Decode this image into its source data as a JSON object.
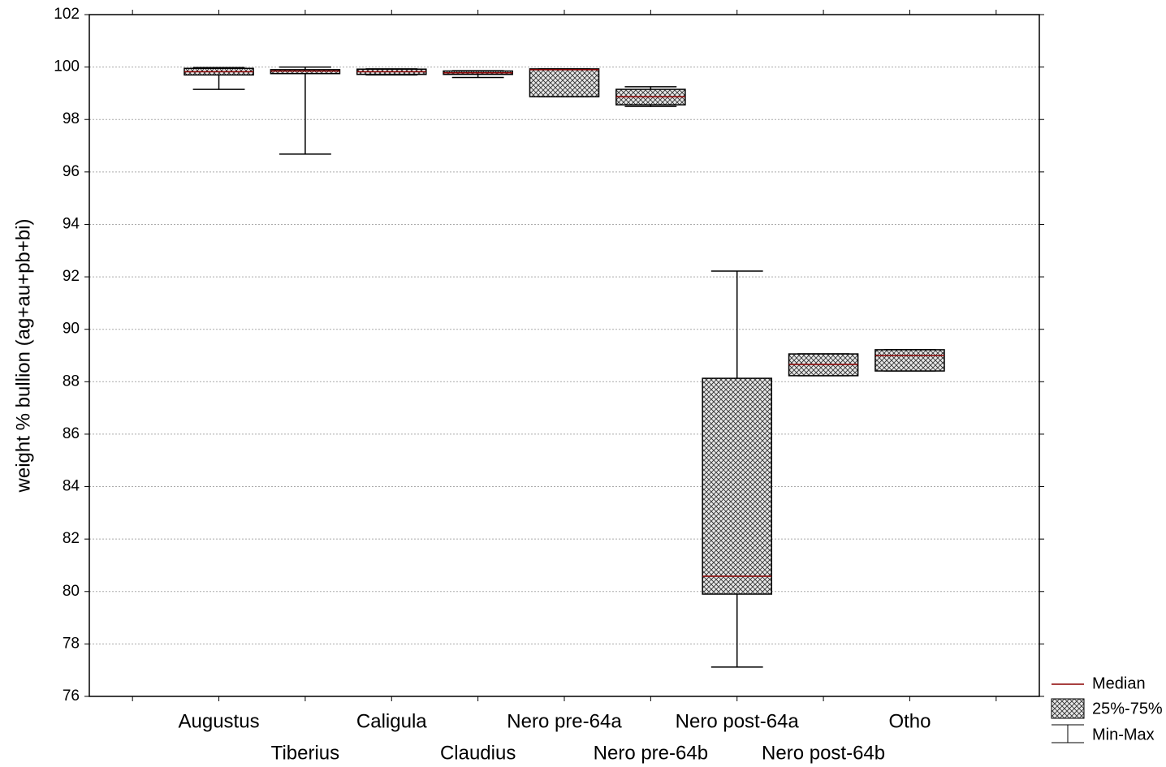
{
  "chart_data": {
    "type": "box",
    "y_label": "weight % bullion (ag+au+pb+bi)",
    "categories": [
      null,
      "Augustus",
      "Tiberius",
      "Caligula",
      "Claudius",
      "Nero pre-64a",
      "Nero pre-64b",
      "Nero post-64a",
      "Nero post-64b",
      "Otho",
      null
    ],
    "min": [
      null,
      99.15,
      96.68,
      99.7,
      99.6,
      98.87,
      98.5,
      77.12,
      88.23,
      88.41,
      null
    ],
    "q1": [
      null,
      99.7,
      99.75,
      99.72,
      99.72,
      98.87,
      98.56,
      79.9,
      88.23,
      88.41,
      null
    ],
    "median": [
      null,
      99.82,
      99.85,
      99.82,
      99.78,
      99.9,
      98.87,
      80.58,
      88.66,
      89.0,
      null
    ],
    "q3": [
      null,
      99.95,
      99.9,
      99.92,
      99.85,
      99.93,
      99.15,
      88.13,
      89.06,
      89.22,
      null
    ],
    "max": [
      null,
      99.98,
      100.0,
      99.93,
      99.86,
      99.93,
      99.25,
      92.22,
      89.06,
      89.22,
      null
    ],
    "median_color": "#8b0000",
    "ylim": [
      76,
      102
    ],
    "yticks": [
      76,
      78,
      80,
      82,
      84,
      86,
      88,
      90,
      92,
      94,
      96,
      98,
      100,
      102
    ],
    "grid": true,
    "legend": {
      "median": "Median",
      "box": "25%-75%",
      "whisker": "Min-Max"
    }
  }
}
